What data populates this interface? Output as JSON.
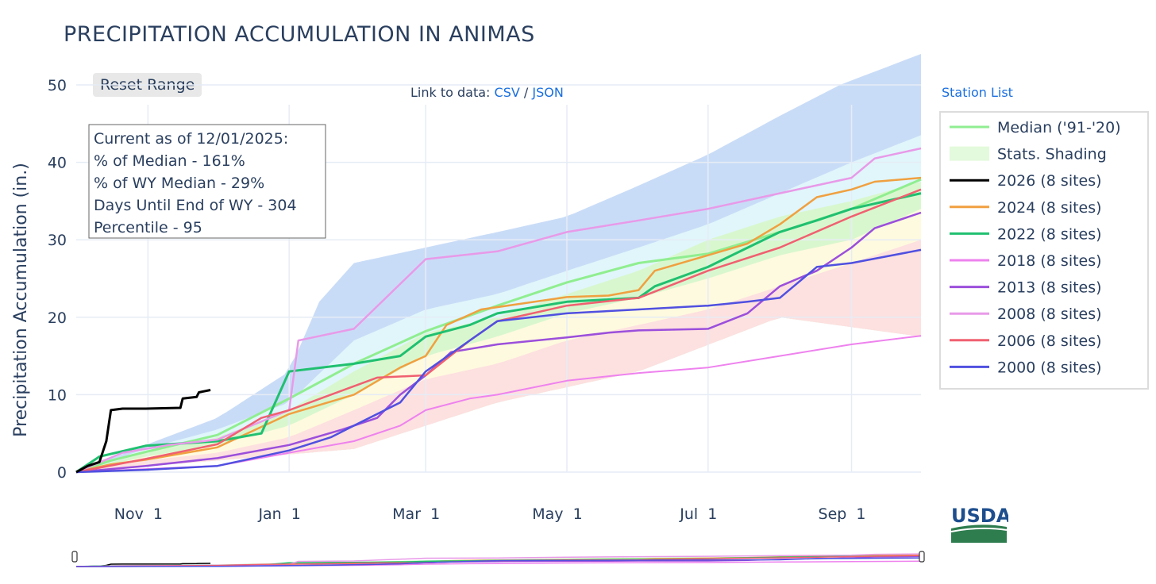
{
  "title": "PRECIPITATION ACCUMULATION IN ANIMAS",
  "reset_label": "Reset Range",
  "links": {
    "prefix": "Link to data:",
    "csv": "CSV",
    "sep": "/",
    "json": "JSON"
  },
  "station_list": "Station List",
  "info_box": [
    "Current as of 12/01/2025:",
    "% of Median - 161%",
    "% of WY Median - 29%",
    "Days Until End of WY - 304",
    "Percentile - 95"
  ],
  "logo_text": "USDA",
  "colors": {
    "median": "#90ee90",
    "y2026": "#000000",
    "y2024": "#f0a040",
    "y2022": "#20c070",
    "y2018": "#ee82ee",
    "y2013": "#9b4fdb",
    "y2008": "#e89ae8",
    "y2006": "#f06070",
    "y2000": "#5050e0",
    "band_blue": "#c9dcf7",
    "band_cyan": "#e0f6fb",
    "band_green": "#d9f7cf",
    "band_yellow": "#fefadf",
    "band_red": "#fde0e0"
  },
  "chart_data": {
    "type": "line",
    "title": "PRECIPITATION ACCUMULATION IN ANIMAS",
    "xlabel": "",
    "ylabel": "Precipitation Accumulation (in.)",
    "xlim": [
      0,
      365
    ],
    "ylim": [
      0,
      55
    ],
    "yticks": [
      0,
      10,
      20,
      30,
      40,
      50
    ],
    "xticks": [
      {
        "day": 31,
        "label": "Nov 1"
      },
      {
        "day": 92,
        "label": "Jan 1"
      },
      {
        "day": 151,
        "label": "Mar 1"
      },
      {
        "day": 212,
        "label": "May 1"
      },
      {
        "day": 273,
        "label": "Jul 1"
      },
      {
        "day": 335,
        "label": "Sep 1"
      }
    ],
    "bands": [
      {
        "name": "max",
        "color_key": "band_blue",
        "lower": [
          [
            0,
            0
          ],
          [
            61,
            1.5
          ],
          [
            120,
            3
          ],
          [
            182,
            9
          ],
          [
            243,
            13
          ],
          [
            304,
            20
          ],
          [
            365,
            17.5
          ]
        ],
        "upper": [
          [
            0,
            0
          ],
          [
            30,
            3.5
          ],
          [
            61,
            7
          ],
          [
            92,
            13
          ],
          [
            105,
            22
          ],
          [
            120,
            27
          ],
          [
            151,
            29
          ],
          [
            182,
            31
          ],
          [
            212,
            33
          ],
          [
            243,
            37
          ],
          [
            273,
            41
          ],
          [
            304,
            46
          ],
          [
            330,
            50
          ],
          [
            365,
            54
          ]
        ]
      },
      {
        "name": "p90",
        "color_key": "band_cyan",
        "lower": [
          [
            0,
            0
          ],
          [
            61,
            1.5
          ],
          [
            120,
            3
          ],
          [
            182,
            9
          ],
          [
            243,
            13
          ],
          [
            304,
            20
          ],
          [
            365,
            17.5
          ]
        ],
        "upper": [
          [
            0,
            0
          ],
          [
            30,
            3
          ],
          [
            61,
            5.5
          ],
          [
            92,
            9
          ],
          [
            120,
            17
          ],
          [
            151,
            21
          ],
          [
            182,
            23
          ],
          [
            212,
            26
          ],
          [
            243,
            29
          ],
          [
            273,
            32
          ],
          [
            304,
            36
          ],
          [
            335,
            40
          ],
          [
            365,
            43.5
          ]
        ]
      },
      {
        "name": "p70",
        "color_key": "band_green",
        "lower": [
          [
            0,
            0
          ],
          [
            61,
            1.5
          ],
          [
            120,
            3
          ],
          [
            182,
            9
          ],
          [
            243,
            13
          ],
          [
            304,
            20
          ],
          [
            365,
            17.5
          ]
        ],
        "upper": [
          [
            0,
            0
          ],
          [
            30,
            2.5
          ],
          [
            61,
            4.5
          ],
          [
            92,
            8
          ],
          [
            120,
            13
          ],
          [
            151,
            18
          ],
          [
            182,
            20
          ],
          [
            212,
            23
          ],
          [
            243,
            26
          ],
          [
            273,
            30
          ],
          [
            304,
            33
          ],
          [
            335,
            35
          ],
          [
            365,
            37.5
          ]
        ]
      },
      {
        "name": "p30",
        "color_key": "band_yellow",
        "lower": [
          [
            0,
            0
          ],
          [
            61,
            1.5
          ],
          [
            120,
            3
          ],
          [
            182,
            9
          ],
          [
            243,
            13
          ],
          [
            304,
            20
          ],
          [
            365,
            17.5
          ]
        ],
        "upper": [
          [
            0,
            0
          ],
          [
            30,
            2
          ],
          [
            61,
            3.5
          ],
          [
            92,
            6
          ],
          [
            120,
            10
          ],
          [
            151,
            15
          ],
          [
            182,
            17.5
          ],
          [
            212,
            20.5
          ],
          [
            243,
            22.5
          ],
          [
            273,
            25
          ],
          [
            304,
            28
          ],
          [
            335,
            30
          ],
          [
            365,
            34
          ]
        ]
      },
      {
        "name": "p10",
        "color_key": "band_red",
        "lower": [
          [
            0,
            0
          ],
          [
            61,
            1.5
          ],
          [
            120,
            3
          ],
          [
            182,
            9
          ],
          [
            243,
            13
          ],
          [
            304,
            20
          ],
          [
            365,
            17.5
          ]
        ],
        "upper": [
          [
            0,
            0
          ],
          [
            30,
            1.5
          ],
          [
            61,
            2.5
          ],
          [
            92,
            4.5
          ],
          [
            120,
            8
          ],
          [
            151,
            12
          ],
          [
            182,
            14
          ],
          [
            212,
            17
          ],
          [
            243,
            19
          ],
          [
            273,
            21
          ],
          [
            304,
            24
          ],
          [
            335,
            27
          ],
          [
            365,
            30
          ]
        ]
      }
    ],
    "series": [
      {
        "name": "Median ('91-'20)",
        "color_key": "median",
        "width": 3,
        "points": [
          [
            0,
            0
          ],
          [
            15,
            1.5
          ],
          [
            30,
            2.6
          ],
          [
            61,
            4.8
          ],
          [
            92,
            9.5
          ],
          [
            120,
            14
          ],
          [
            151,
            18.2
          ],
          [
            182,
            21.5
          ],
          [
            212,
            24.5
          ],
          [
            243,
            27
          ],
          [
            273,
            28.2
          ],
          [
            304,
            31
          ],
          [
            335,
            34
          ],
          [
            365,
            37.8
          ]
        ]
      },
      {
        "name": "2026 (8 sites)",
        "color_key": "y2026",
        "width": 3,
        "points": [
          [
            0,
            0
          ],
          [
            5,
            0.8
          ],
          [
            10,
            1.3
          ],
          [
            13,
            4
          ],
          [
            15,
            8
          ],
          [
            20,
            8.2
          ],
          [
            30,
            8.2
          ],
          [
            45,
            8.3
          ],
          [
            46,
            9.5
          ],
          [
            52,
            9.7
          ],
          [
            53,
            10.3
          ],
          [
            58,
            10.6
          ]
        ]
      },
      {
        "name": "2024 (8 sites)",
        "color_key": "y2024",
        "width": 2.5,
        "points": [
          [
            0,
            0
          ],
          [
            15,
            1
          ],
          [
            30,
            1.6
          ],
          [
            61,
            3.2
          ],
          [
            92,
            7.5
          ],
          [
            120,
            10
          ],
          [
            140,
            13.5
          ],
          [
            151,
            15
          ],
          [
            160,
            19
          ],
          [
            175,
            21
          ],
          [
            212,
            22.6
          ],
          [
            230,
            22.8
          ],
          [
            243,
            23.5
          ],
          [
            250,
            26
          ],
          [
            273,
            28
          ],
          [
            290,
            29.5
          ],
          [
            304,
            32
          ],
          [
            320,
            35.5
          ],
          [
            335,
            36.5
          ],
          [
            345,
            37.5
          ],
          [
            365,
            38
          ]
        ]
      },
      {
        "name": "2022 (8 sites)",
        "color_key": "y2022",
        "width": 3,
        "points": [
          [
            0,
            0
          ],
          [
            10,
            2
          ],
          [
            30,
            3.4
          ],
          [
            61,
            4
          ],
          [
            80,
            5
          ],
          [
            92,
            13
          ],
          [
            120,
            14
          ],
          [
            140,
            15
          ],
          [
            151,
            17.5
          ],
          [
            170,
            19
          ],
          [
            182,
            20.5
          ],
          [
            212,
            22
          ],
          [
            243,
            22.5
          ],
          [
            250,
            24
          ],
          [
            273,
            26.5
          ],
          [
            304,
            31
          ],
          [
            320,
            32.5
          ],
          [
            335,
            34
          ],
          [
            365,
            36
          ]
        ]
      },
      {
        "name": "2018 (8 sites)",
        "color_key": "y2018",
        "width": 2,
        "points": [
          [
            0,
            0
          ],
          [
            30,
            0.4
          ],
          [
            61,
            0.8
          ],
          [
            92,
            2.5
          ],
          [
            120,
            4
          ],
          [
            140,
            6
          ],
          [
            151,
            8
          ],
          [
            170,
            9.5
          ],
          [
            182,
            10
          ],
          [
            212,
            11.8
          ],
          [
            243,
            12.8
          ],
          [
            273,
            13.5
          ],
          [
            304,
            15
          ],
          [
            335,
            16.5
          ],
          [
            365,
            17.6
          ]
        ]
      },
      {
        "name": "2013 (8 sites)",
        "color_key": "y2013",
        "width": 2.5,
        "points": [
          [
            0,
            0
          ],
          [
            30,
            0.8
          ],
          [
            61,
            1.8
          ],
          [
            92,
            3.5
          ],
          [
            115,
            5.5
          ],
          [
            130,
            7
          ],
          [
            140,
            10
          ],
          [
            151,
            12.5
          ],
          [
            162,
            15.5
          ],
          [
            182,
            16.5
          ],
          [
            212,
            17.4
          ],
          [
            230,
            18
          ],
          [
            243,
            18.3
          ],
          [
            273,
            18.5
          ],
          [
            290,
            20.5
          ],
          [
            304,
            24
          ],
          [
            320,
            26
          ],
          [
            335,
            29
          ],
          [
            345,
            31.5
          ],
          [
            365,
            33.5
          ]
        ]
      },
      {
        "name": "2008 (8 sites)",
        "color_key": "y2008",
        "width": 2.5,
        "points": [
          [
            0,
            0
          ],
          [
            20,
            2.5
          ],
          [
            40,
            3.5
          ],
          [
            61,
            4.2
          ],
          [
            92,
            8
          ],
          [
            96,
            17
          ],
          [
            120,
            18.5
          ],
          [
            151,
            27.5
          ],
          [
            182,
            28.5
          ],
          [
            212,
            31
          ],
          [
            243,
            32.5
          ],
          [
            273,
            34
          ],
          [
            304,
            36
          ],
          [
            335,
            38
          ],
          [
            345,
            40.5
          ],
          [
            365,
            41.8
          ]
        ]
      },
      {
        "name": "2006 (8 sites)",
        "color_key": "y2006",
        "width": 2.5,
        "points": [
          [
            0,
            0
          ],
          [
            30,
            1.7
          ],
          [
            61,
            3.6
          ],
          [
            80,
            7
          ],
          [
            92,
            8
          ],
          [
            110,
            10
          ],
          [
            130,
            12.2
          ],
          [
            151,
            12.5
          ],
          [
            170,
            17
          ],
          [
            182,
            19.5
          ],
          [
            212,
            21.5
          ],
          [
            243,
            22.5
          ],
          [
            273,
            26
          ],
          [
            304,
            29
          ],
          [
            335,
            33
          ],
          [
            365,
            36.5
          ]
        ]
      },
      {
        "name": "2000 (8 sites)",
        "color_key": "y2000",
        "width": 2.5,
        "points": [
          [
            0,
            0
          ],
          [
            30,
            0.3
          ],
          [
            61,
            0.8
          ],
          [
            92,
            2.8
          ],
          [
            110,
            4.5
          ],
          [
            120,
            6
          ],
          [
            140,
            9
          ],
          [
            151,
            13
          ],
          [
            170,
            17
          ],
          [
            182,
            19.5
          ],
          [
            212,
            20.5
          ],
          [
            243,
            21
          ],
          [
            273,
            21.5
          ],
          [
            290,
            22
          ],
          [
            304,
            22.5
          ],
          [
            320,
            26.5
          ],
          [
            335,
            27
          ],
          [
            365,
            28.7
          ]
        ]
      }
    ],
    "legend_extra": "Stats. Shading",
    "legend_position": "right"
  }
}
